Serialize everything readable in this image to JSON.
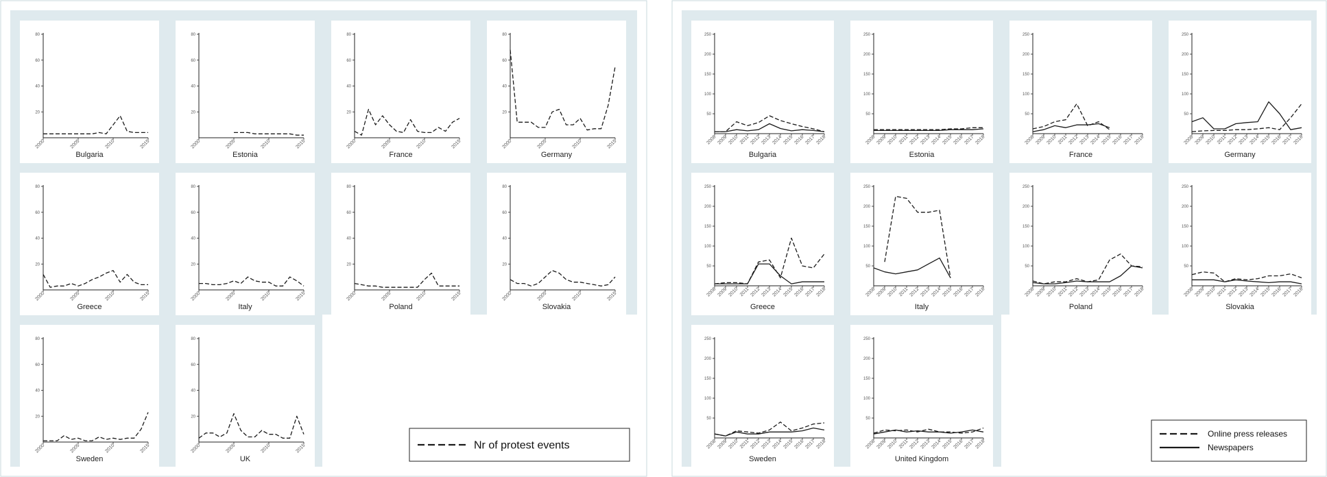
{
  "colors": {
    "panel_background": "#dfeaee",
    "plot_background": "#ffffff",
    "frame_border": "#c9d8dd",
    "line": "#1a1a1a",
    "axis": "#222222",
    "tick_text": "#555555"
  },
  "legends": {
    "left": [
      {
        "label": "Nr of protest events",
        "style": "dashed"
      }
    ],
    "right": [
      {
        "label": "Online press releases",
        "style": "dashed"
      },
      {
        "label": "Newspapers",
        "style": "solid"
      }
    ]
  },
  "chart_data": [
    {
      "type": "line",
      "layout": "small-multiples grid, 4 columns, shared y axis",
      "legend_position": "bottom-right",
      "grid": false,
      "ylim": [
        0,
        80
      ],
      "yticks": [
        "80",
        "60",
        "40",
        "20"
      ],
      "xlim": [
        2000,
        2015
      ],
      "xticks": [
        "2000",
        "2005",
        "2010",
        "2015"
      ],
      "x": [
        2000,
        2001,
        2002,
        2003,
        2004,
        2005,
        2006,
        2007,
        2008,
        2009,
        2010,
        2011,
        2012,
        2013,
        2014,
        2015
      ],
      "series": [
        {
          "name": "Nr of protest events",
          "style": "dashed"
        }
      ],
      "panels": [
        {
          "title": "Bulgaria",
          "values": {
            "Nr of protest events": [
              3,
              3,
              3,
              3,
              3,
              3,
              3,
              3,
              4,
              3,
              10,
              17,
              5,
              4,
              4,
              4
            ]
          }
        },
        {
          "title": "Estonia",
          "values": {
            "Nr of protest events": [
              null,
              null,
              null,
              null,
              null,
              4,
              4,
              4,
              3,
              3,
              3,
              3,
              3,
              3,
              2,
              2
            ]
          }
        },
        {
          "title": "France",
          "values": {
            "Nr of protest events": [
              5,
              2,
              22,
              10,
              17,
              10,
              5,
              4,
              14,
              5,
              4,
              4,
              8,
              5,
              12,
              15
            ]
          }
        },
        {
          "title": "Germany",
          "values": {
            "Nr of protest events": [
              68,
              12,
              12,
              12,
              8,
              8,
              20,
              22,
              10,
              10,
              15,
              6,
              7,
              7,
              25,
              55
            ]
          }
        },
        {
          "title": "Greece",
          "values": {
            "Nr of protest events": [
              12,
              2,
              3,
              3,
              5,
              3,
              5,
              8,
              10,
              13,
              15,
              6,
              12,
              6,
              4,
              4
            ]
          }
        },
        {
          "title": "Italy",
          "values": {
            "Nr of protest events": [
              5,
              5,
              4,
              4,
              5,
              7,
              5,
              10,
              7,
              6,
              6,
              3,
              3,
              10,
              7,
              3
            ]
          }
        },
        {
          "title": "Poland",
          "values": {
            "Nr of protest events": [
              5,
              4,
              3,
              3,
              2,
              2,
              2,
              2,
              2,
              2,
              8,
              13,
              3,
              3,
              3,
              3
            ]
          }
        },
        {
          "title": "Slovakia",
          "values": {
            "Nr of protest events": [
              8,
              5,
              5,
              3,
              5,
              10,
              15,
              13,
              8,
              6,
              6,
              5,
              4,
              3,
              4,
              10
            ]
          }
        },
        {
          "title": "Sweden",
          "values": {
            "Nr of protest events": [
              1,
              1,
              1,
              5,
              2,
              3,
              1,
              1,
              4,
              2,
              3,
              2,
              3,
              3,
              10,
              23
            ]
          }
        },
        {
          "title": "UK",
          "values": {
            "Nr of protest events": [
              3,
              7,
              7,
              4,
              7,
              22,
              9,
              4,
              4,
              9,
              6,
              6,
              3,
              3,
              20,
              6
            ]
          }
        }
      ]
    },
    {
      "type": "line",
      "layout": "small-multiples grid, 4 columns, shared y axis",
      "legend_position": "bottom-right",
      "grid": false,
      "ylim": [
        0,
        250
      ],
      "yticks": [
        "250",
        "200",
        "150",
        "100",
        "50"
      ],
      "xlim": [
        2008,
        2018
      ],
      "xticks": [
        "2008",
        "2009",
        "2010",
        "2011",
        "2012",
        "2013",
        "2014",
        "2015",
        "2016",
        "2017",
        "2018"
      ],
      "x": [
        2008,
        2009,
        2010,
        2011,
        2012,
        2013,
        2014,
        2015,
        2016,
        2017,
        2018
      ],
      "series": [
        {
          "name": "Online press releases",
          "style": "dashed"
        },
        {
          "name": "Newspapers",
          "style": "solid"
        }
      ],
      "panels": [
        {
          "title": "Bulgaria",
          "values": {
            "Online press releases": [
              5,
              5,
              30,
              20,
              28,
              45,
              33,
              25,
              18,
              12,
              5
            ],
            "Newspapers": [
              5,
              5,
              10,
              7,
              10,
              25,
              13,
              7,
              10,
              8,
              5
            ]
          }
        },
        {
          "title": "Estonia",
          "values": {
            "Online press releases": [
              10,
              10,
              10,
              10,
              10,
              10,
              10,
              12,
              12,
              15,
              15
            ],
            "Newspapers": [
              8,
              8,
              8,
              8,
              8,
              8,
              8,
              10,
              10,
              10,
              12
            ]
          }
        },
        {
          "title": "France",
          "values": {
            "Online press releases": [
              12,
              18,
              30,
              35,
              75,
              20,
              30,
              10,
              null,
              null,
              null
            ],
            "Newspapers": [
              5,
              10,
              20,
              15,
              22,
              22,
              25,
              15,
              null,
              null,
              null
            ]
          }
        },
        {
          "title": "Germany",
          "values": {
            "Online press releases": [
              5,
              7,
              8,
              8,
              10,
              10,
              12,
              15,
              10,
              40,
              75
            ],
            "Newspapers": [
              30,
              40,
              12,
              12,
              25,
              28,
              30,
              80,
              50,
              10,
              15
            ]
          }
        },
        {
          "title": "Greece",
          "values": {
            "Online press releases": [
              5,
              8,
              8,
              5,
              60,
              65,
              20,
              120,
              50,
              45,
              80
            ],
            "Newspapers": [
              5,
              5,
              5,
              5,
              55,
              55,
              25,
              5,
              10,
              10,
              10
            ]
          }
        },
        {
          "title": "Italy",
          "values": {
            "Online press releases": [
              null,
              60,
              225,
              220,
              185,
              185,
              190,
              20,
              null,
              null,
              null
            ],
            "Newspapers": [
              45,
              35,
              30,
              35,
              40,
              55,
              70,
              20,
              null,
              null,
              null
            ]
          }
        },
        {
          "title": "Poland",
          "values": {
            "Online press releases": [
              12,
              5,
              10,
              10,
              18,
              10,
              15,
              65,
              80,
              50,
              48
            ],
            "Newspapers": [
              8,
              5,
              5,
              8,
              12,
              10,
              10,
              10,
              25,
              50,
              45
            ]
          }
        },
        {
          "title": "Slovakia",
          "values": {
            "Online press releases": [
              28,
              35,
              32,
              10,
              18,
              15,
              18,
              25,
              25,
              30,
              20
            ],
            "Newspapers": [
              15,
              15,
              15,
              10,
              15,
              12,
              10,
              8,
              10,
              10,
              5
            ]
          }
        },
        {
          "title": "Sweden",
          "values": {
            "Online press releases": [
              10,
              5,
              18,
              15,
              12,
              20,
              40,
              18,
              25,
              35,
              38
            ],
            "Newspapers": [
              10,
              5,
              15,
              10,
              10,
              15,
              15,
              15,
              18,
              25,
              20
            ]
          }
        },
        {
          "title": "United Kingdom",
          "values": {
            "Online press releases": [
              12,
              20,
              18,
              20,
              15,
              22,
              15,
              15,
              12,
              15,
              25
            ],
            "Newspapers": [
              10,
              15,
              20,
              15,
              18,
              15,
              15,
              12,
              15,
              20,
              15
            ]
          }
        }
      ]
    }
  ]
}
